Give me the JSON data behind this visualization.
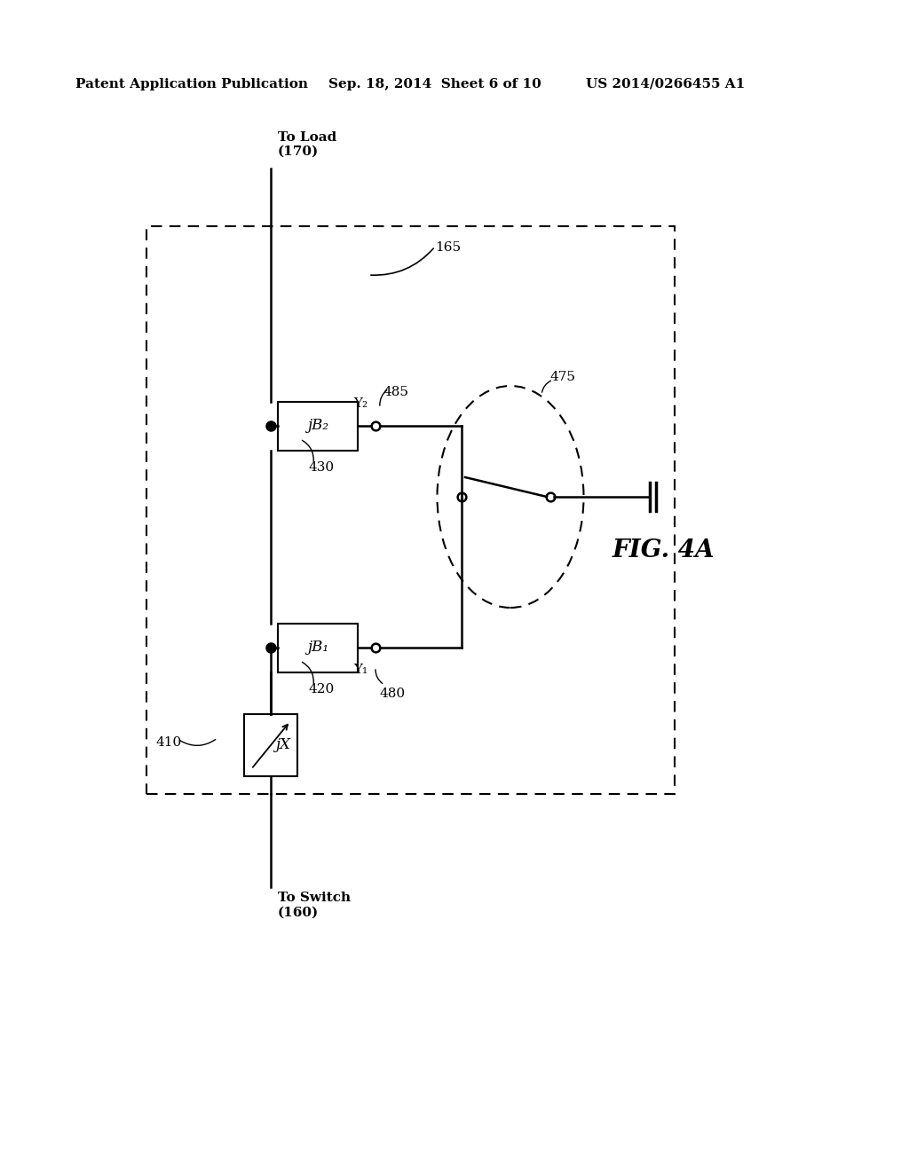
{
  "bg_color": "#ffffff",
  "header_left": "Patent Application Publication",
  "header_mid": "Sep. 18, 2014  Sheet 6 of 10",
  "header_right": "US 2014/0266455 A1",
  "fig_label": "FIG. 4A",
  "label_165": "165",
  "label_475": "475",
  "label_485": "485",
  "label_430": "430",
  "label_420": "420",
  "label_480": "480",
  "label_410": "410",
  "label_Y2": "Y₂",
  "label_Y1": "Y₁",
  "text_to_load": "To Load\n(170)",
  "text_to_switch": "To Switch\n(160)",
  "box_jX": "jX",
  "box_jB1": "jB₁",
  "box_jB2": "jB₂"
}
